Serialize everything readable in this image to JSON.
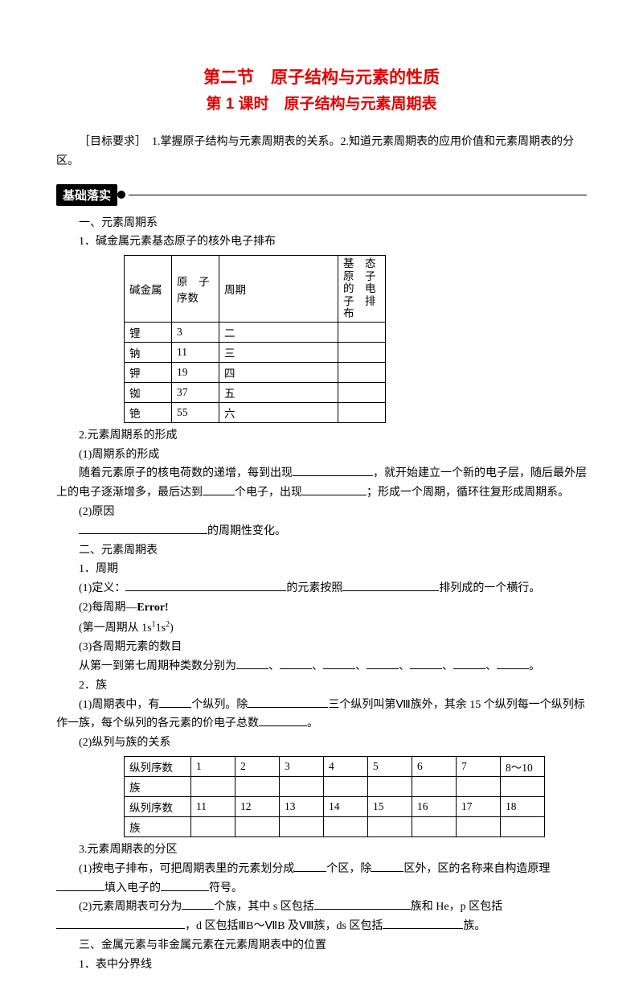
{
  "titles": {
    "main": "第二节　原子结构与元素的性质",
    "sub": "第 1 课时　原子结构与元素周期表"
  },
  "objective": {
    "label": "［目标要求］",
    "text": "　1.掌握原子结构与元素周期表的关系。2.知道元素周期表的应用价值和元素周期表的分区。"
  },
  "badge": {
    "text": "基础落实"
  },
  "sec1": {
    "h": "一、元素周期系",
    "p1": "1．碱金属元素基态原子的核外电子排布",
    "table": {
      "head": [
        "碱金属",
        "原　子序数",
        "周期",
        "基态原子的电子排布"
      ],
      "rows": [
        [
          "锂",
          "3",
          "二",
          ""
        ],
        [
          "钠",
          "11",
          "三",
          ""
        ],
        [
          "钾",
          "19",
          "四",
          ""
        ],
        [
          "铷",
          "37",
          "五",
          ""
        ],
        [
          "铯",
          "55",
          "六",
          ""
        ]
      ]
    },
    "p2": "2.元素周期系的形成",
    "p3": "(1)周期系的形成",
    "p4a": "随着元素原子的核电荷数的递增，每到出现",
    "p4b": "，就开始建立一个新的电子层，随后最外层上的电子逐渐增多，最后达到",
    "p4c": "个电子，出现",
    "p4d": "；形成一个周期，循环往复形成周期系。",
    "p5": "(2)原因",
    "p6": "的周期性变化。"
  },
  "sec2": {
    "h": "二、元素周期表",
    "p1": "1．周期",
    "p2a": "(1)定义：",
    "p2b": "的元素按照",
    "p2c": "排列成的一个横行。",
    "p3": "(2)每周期—",
    "err": "Error!",
    "p4a": "(第一周期从 1s",
    "p4b": "1s",
    "p4c": ")",
    "p5": "(3)各周期元素的数目",
    "p6a": "从第一到第七周期种类数分别为",
    "p6dot": "、",
    "p6end": "。",
    "p7": "2．族",
    "p8a": "(1)周期表中，有",
    "p8b": "个纵列。除",
    "p8c": "三个纵列叫第Ⅷ族外，其余 15 个纵列每一个纵列标作一族，每个纵列的各元素的价电子总数",
    "p8d": "。",
    "p9": "(2)纵列与族的关系",
    "table": {
      "r1": [
        "纵列序数",
        "1",
        "2",
        "3",
        "4",
        "5",
        "6",
        "7",
        "8～10"
      ],
      "r2": "族",
      "r3": [
        "纵列序数",
        "11",
        "12",
        "13",
        "14",
        "15",
        "16",
        "17",
        "18"
      ],
      "r4": "族"
    },
    "p10": "3.元素周期表的分区",
    "p11a": "(1)按电子排布，可把周期表里的元素划分成",
    "p11b": "个区，除",
    "p11c": "区外，区的名称来自构造原理",
    "p11d": "填入电子的",
    "p11e": "符号。",
    "p12a": "(2)元素周期表可分为",
    "p12b": "个族，其中 s 区包括",
    "p12c": "族和 He，p 区包括",
    "p12d": "，d 区包括ⅢB～ⅦB 及Ⅷ族，ds 区包括",
    "p12e": "族。"
  },
  "sec3": {
    "h": "三、金属元素与非金属元素在元素周期表中的位置",
    "p1": "1．表中分界线"
  },
  "colors": {
    "title": "#e30000",
    "text": "#000000",
    "bg": "#ffffff"
  }
}
